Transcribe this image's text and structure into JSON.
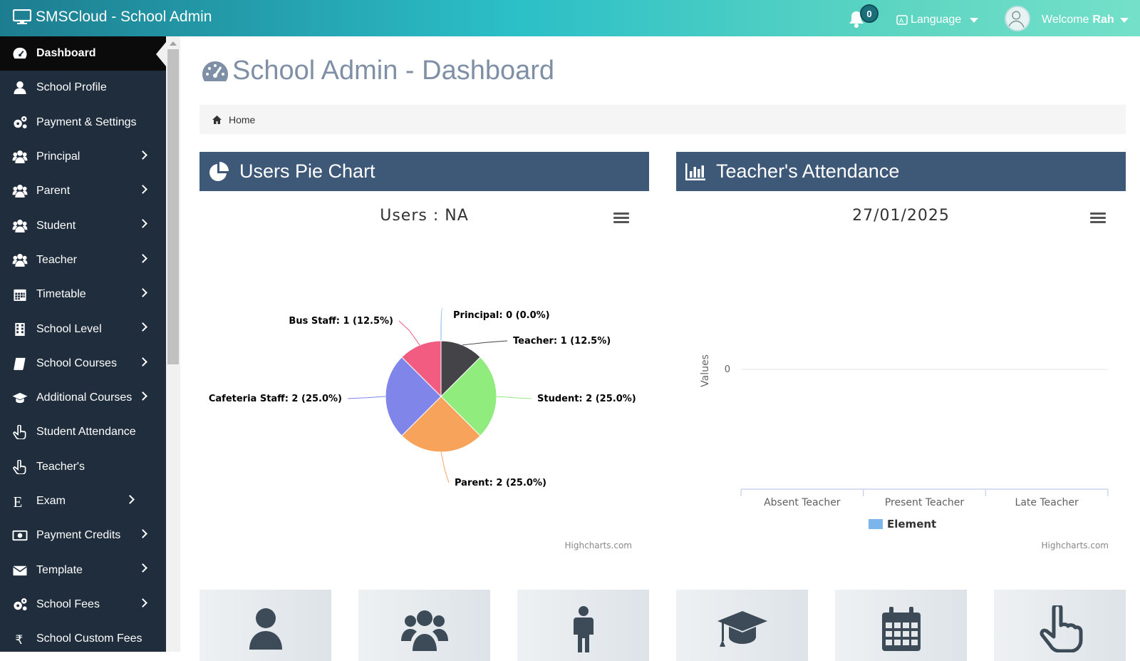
{
  "app": {
    "title": "SMSCloud - School Admin",
    "notification_count": "0",
    "language_label": "Language",
    "welcome_text": "Welcome",
    "user_name": "Rah"
  },
  "sidebar": {
    "items": [
      {
        "label": "Dashboard",
        "icon": "dashboard-icon",
        "active": true,
        "has_submenu": false
      },
      {
        "label": "School Profile",
        "icon": "user-icon",
        "has_submenu": false
      },
      {
        "label": "Payment & Settings",
        "icon": "gears-icon",
        "has_submenu": false
      },
      {
        "label": "Principal",
        "icon": "users-icon",
        "has_submenu": true
      },
      {
        "label": "Parent",
        "icon": "users-icon",
        "has_submenu": true
      },
      {
        "label": "Student",
        "icon": "users-icon",
        "has_submenu": true
      },
      {
        "label": "Teacher",
        "icon": "users-icon",
        "has_submenu": true
      },
      {
        "label": "Timetable",
        "icon": "calendar-icon",
        "has_submenu": true
      },
      {
        "label": "School Level",
        "icon": "building-icon",
        "has_submenu": true
      },
      {
        "label": "School Courses",
        "icon": "book-icon",
        "has_submenu": true
      },
      {
        "label": "Additional Courses",
        "icon": "graduation-cap-icon",
        "has_submenu": true
      },
      {
        "label": "Student Attendance",
        "icon": "hand-pointer-icon",
        "has_submenu": false
      },
      {
        "label": "Teacher's",
        "icon": "hand-pointer-icon",
        "has_submenu": false
      },
      {
        "label": "Exam",
        "icon": "letter-e-icon",
        "has_submenu": true
      },
      {
        "label": "Payment Credits",
        "icon": "money-icon",
        "has_submenu": true
      },
      {
        "label": "Template",
        "icon": "envelope-icon",
        "has_submenu": true
      },
      {
        "label": "School Fees",
        "icon": "gears-icon",
        "has_submenu": true
      },
      {
        "label": "School Custom Fees",
        "icon": "rupee-icon",
        "has_submenu": false
      }
    ]
  },
  "main": {
    "page_title": "School Admin - Dashboard",
    "breadcrumb_home": "Home",
    "panels": {
      "pie_title": "Users Pie Chart",
      "attendance_title": "Teacher's Attendance"
    },
    "credits": "Highcharts.com"
  },
  "colors": {
    "topbar_start": "#1d7d90",
    "topbar_end": "#74e0c9",
    "sidebar_bg": "#1f2d3d",
    "panel_header": "#3e5878"
  },
  "tiles": [
    "user-icon",
    "users-icon",
    "male-icon",
    "graduation-cap-icon",
    "calendar-icon",
    "hand-pointer-icon"
  ],
  "chart_data": [
    {
      "type": "pie",
      "title": "Users : NA",
      "slices": [
        {
          "name": "Principal",
          "value": 0,
          "percent": "0.0%",
          "label": "Principal: 0 (0.0%)",
          "color": "#7cb5ec"
        },
        {
          "name": "Teacher",
          "value": 1,
          "percent": "12.5%",
          "label": "Teacher: 1 (12.5%)",
          "color": "#434348"
        },
        {
          "name": "Student",
          "value": 2,
          "percent": "25.0%",
          "label": "Student: 2 (25.0%)",
          "color": "#90ed7d"
        },
        {
          "name": "Parent",
          "value": 2,
          "percent": "25.0%",
          "label": "Parent: 2 (25.0%)",
          "color": "#f7a35c"
        },
        {
          "name": "Cafeteria Staff",
          "value": 2,
          "percent": "25.0%",
          "label": "Cafeteria Staff: 2 (25.0%)",
          "color": "#8085e9"
        },
        {
          "name": "Bus Staff",
          "value": 1,
          "percent": "12.5%",
          "label": "Bus Staff: 1 (12.5%)",
          "color": "#f15c80"
        }
      ]
    },
    {
      "type": "bar",
      "title": "27/01/2025",
      "categories": [
        "Absent Teacher",
        "Present Teacher",
        "Late Teacher"
      ],
      "series": [
        {
          "name": "Element",
          "values": [
            0,
            0,
            0
          ],
          "color": "#7cb5ec"
        }
      ],
      "ylabel": "Values",
      "yticks": [
        "0"
      ],
      "legend": "bottom-center"
    }
  ]
}
